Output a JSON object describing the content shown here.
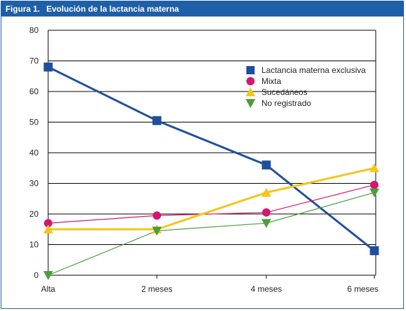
{
  "header": {
    "figure_label": "Figura 1.",
    "title": "Evolución de la lactancia materna"
  },
  "colors": {
    "frame": "#1f5fa8",
    "header_bg": "#1f5fa8",
    "header_text": "#ffffff"
  },
  "chart_data": {
    "type": "line",
    "title": "Figura 1.  Evolución de la lactancia materna",
    "categories": [
      "Alta",
      "2 meses",
      "4 meses",
      "6 meses"
    ],
    "ylim": [
      0,
      80
    ],
    "yticks": [
      0,
      10,
      20,
      30,
      40,
      50,
      60,
      70,
      80
    ],
    "grid": "horizontal",
    "legend_position": "top-right",
    "series": [
      {
        "name": "Lactancia materna exclusiva",
        "values": [
          68,
          50.5,
          36,
          8
        ],
        "color": "#1f4f9c",
        "marker": "square"
      },
      {
        "name": "Mixta",
        "values": [
          17,
          19.5,
          20.5,
          29.5
        ],
        "color": "#d6156e",
        "marker": "circle"
      },
      {
        "name": "Sucedáneos",
        "values": [
          15,
          15,
          27,
          35
        ],
        "color": "#f5c518",
        "marker": "triangle-up"
      },
      {
        "name": "No registrado",
        "values": [
          0,
          14.5,
          17,
          27
        ],
        "color": "#4a9e3a",
        "marker": "triangle-down"
      }
    ]
  }
}
